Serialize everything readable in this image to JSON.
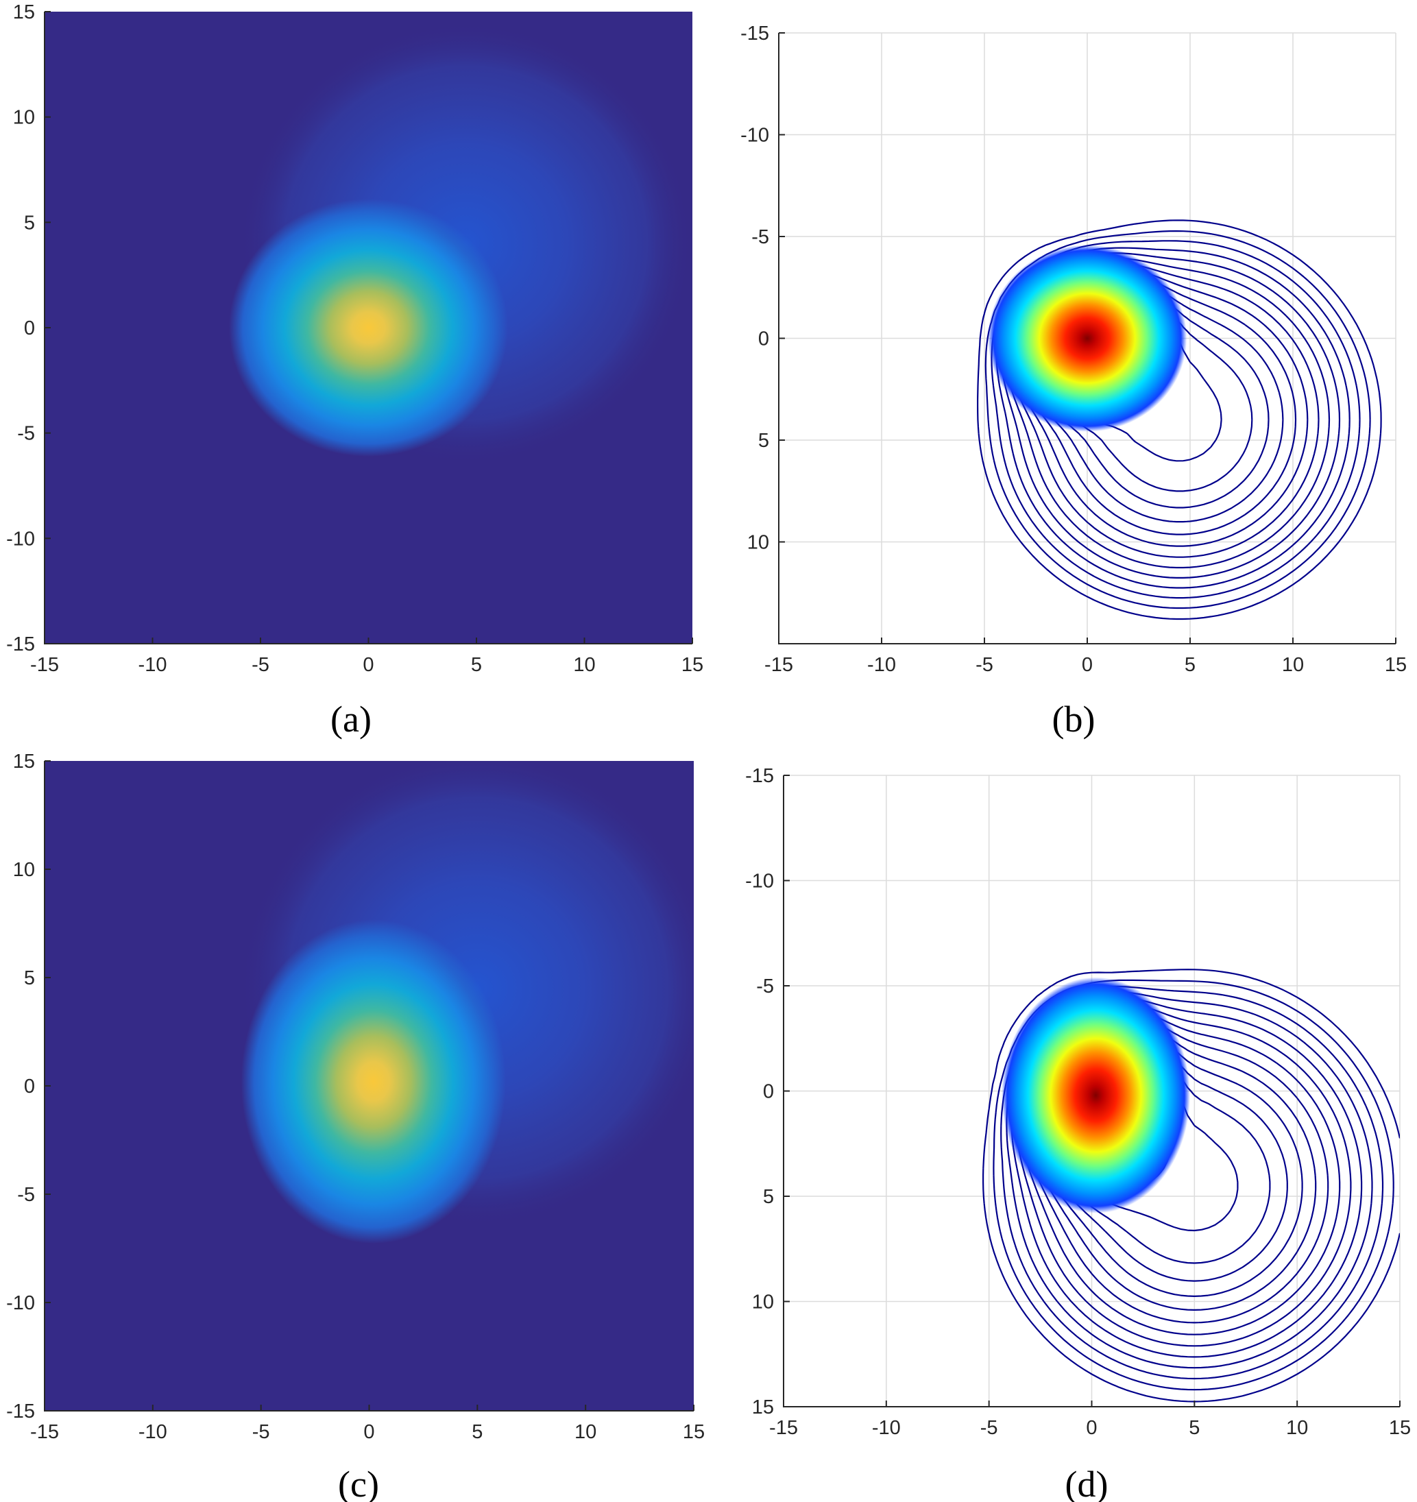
{
  "figure": {
    "captions": [
      "(a)",
      "(b)",
      "(c)",
      "(d)"
    ]
  },
  "colors": {
    "background_field": "#352a87",
    "contour_line": "#00008b",
    "parula_peak": "#f9c83a",
    "jet_peak": "#c00000"
  },
  "chart_data": [
    {
      "panel": "a",
      "type": "heatmap",
      "colormap": "parula",
      "title": "",
      "xlabel": "",
      "ylabel": "",
      "xlim": [
        -15,
        15
      ],
      "ylim": [
        -15,
        15
      ],
      "y_direction": "normal",
      "grid": false,
      "x_ticks": [
        "-15",
        "-10",
        "-5",
        "0",
        "5",
        "10",
        "15"
      ],
      "y_ticks": [
        "15",
        "10",
        "5",
        "0",
        "-5",
        "-10",
        "-15"
      ],
      "peak": {
        "x": 0,
        "y": 0,
        "sx": 1.9,
        "sy": 1.8
      },
      "shoulder": {
        "x": 4.5,
        "y": 4,
        "r": 10.5
      },
      "caption": "(a)"
    },
    {
      "panel": "b",
      "type": "contour",
      "colormap": "jet",
      "title": "",
      "xlabel": "",
      "ylabel": "",
      "xlim": [
        -15,
        15
      ],
      "ylim": [
        -15,
        15
      ],
      "y_direction": "reverse",
      "grid": true,
      "x_ticks": [
        "-15",
        "-10",
        "-5",
        "0",
        "5",
        "10",
        "15"
      ],
      "y_ticks": [
        "-15",
        "-10",
        "-5",
        "0",
        "5",
        "10"
      ],
      "peak": {
        "x": 0,
        "y": 0,
        "sx": 1.9,
        "sy": 1.8
      },
      "shoulder": {
        "x": 4.5,
        "y": 4,
        "r": 10.5
      },
      "caption": "(b)"
    },
    {
      "panel": "c",
      "type": "heatmap",
      "colormap": "parula",
      "title": "",
      "xlabel": "",
      "ylabel": "",
      "xlim": [
        -15,
        15
      ],
      "ylim": [
        -15,
        15
      ],
      "y_direction": "normal",
      "grid": false,
      "x_ticks": [
        "-15",
        "-10",
        "-5",
        "0",
        "5",
        "10",
        "15"
      ],
      "y_ticks": [
        "15",
        "10",
        "5",
        "0",
        "-5",
        "-10",
        "-15"
      ],
      "peak": {
        "x": 0.2,
        "y": 0.2,
        "sx": 1.8,
        "sy": 2.2
      },
      "shoulder": {
        "x": 5,
        "y": 4.5,
        "r": 11
      },
      "caption": "(c)"
    },
    {
      "panel": "d",
      "type": "contour",
      "colormap": "jet",
      "title": "",
      "xlabel": "",
      "ylabel": "",
      "xlim": [
        -15,
        15
      ],
      "ylim": [
        -15,
        15
      ],
      "y_direction": "reverse",
      "grid": true,
      "x_ticks": [
        "-15",
        "-10",
        "-5",
        "0",
        "5",
        "10",
        "15"
      ],
      "y_ticks": [
        "-15",
        "-10",
        "-5",
        "0",
        "5",
        "10",
        "15"
      ],
      "peak": {
        "x": 0.2,
        "y": 0.2,
        "sx": 1.8,
        "sy": 2.2
      },
      "shoulder": {
        "x": 5,
        "y": 4.5,
        "r": 11
      },
      "caption": "(d)"
    }
  ]
}
